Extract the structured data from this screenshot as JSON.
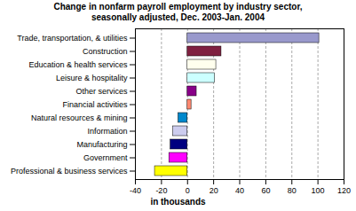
{
  "chart_data": {
    "type": "bar",
    "orientation": "horizontal",
    "title": "Change in nonfarm payroll employment by industry sector,\nseasonally adjusted, Dec. 2003-Jan. 2004",
    "xlabel": "in thousands",
    "categories": [
      "Trade, transportation, & utilities",
      "Construction",
      "Education & health services",
      "Leisure & hospitality",
      "Other services",
      "Financial activities",
      "Natural resources & mining",
      "Information",
      "Manufacturing",
      "Government",
      "Professional & business services"
    ],
    "values": [
      101,
      26,
      22,
      21,
      7,
      3,
      -7,
      -11,
      -13,
      -14,
      -25
    ],
    "colors": [
      "#9999cc",
      "#7f2040",
      "#ffffee",
      "#ccffff",
      "#880088",
      "#ff8870",
      "#0088cc",
      "#ccccee",
      "#000080",
      "#ff00ff",
      "#ffff00"
    ],
    "xlim": [
      -40,
      120
    ],
    "xticks": [
      -40,
      -20,
      0,
      20,
      40,
      60,
      80,
      100,
      120
    ],
    "grid": true
  }
}
